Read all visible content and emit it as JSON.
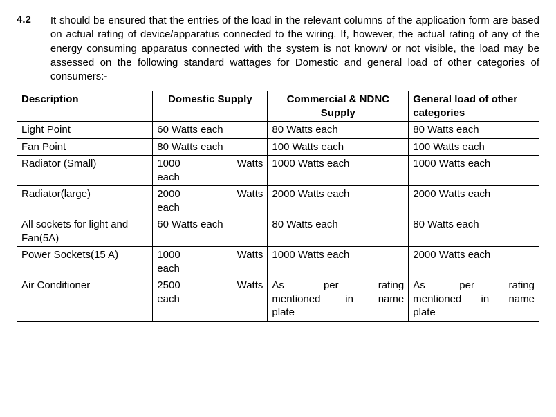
{
  "section": {
    "number": "4.2",
    "text": "It should be ensured that the entries of the load in the relevant columns of the application form are based on actual rating of device/apparatus connected to the wiring. If, however, the actual rating of any of the energy consuming apparatus connected with the system is not known/ or not visible, the load may be assessed on the following standard wattages for Domestic and general load of other categories of consumers:-"
  },
  "table": {
    "headers": {
      "c0": "Description",
      "c1": "Domestic Supply",
      "c2": "Commercial & NDNC Supply",
      "c3": "General load of other categories"
    },
    "rows": [
      {
        "c0": "Light Point",
        "c1": "60 Watts each",
        "c2": "80 Watts each",
        "c3": "80 Watts each"
      },
      {
        "c0": "Fan Point",
        "c1": "80 Watts each",
        "c2": "100 Watts each",
        "c3": "100 Watts each"
      },
      {
        "c0": "Radiator (Small)",
        "c1_a": "1000",
        "c1_b": "Watts",
        "c1_c": "each",
        "c2": "1000 Watts each",
        "c3": "1000 Watts each"
      },
      {
        "c0": "Radiator(large)",
        "c1_a": "2000",
        "c1_b": "Watts",
        "c1_c": "each",
        "c2": "2000 Watts each",
        "c3": "2000 Watts each"
      },
      {
        "c0": "All sockets for light and Fan(5A)",
        "c1": "60 Watts each",
        "c2": "80 Watts each",
        "c3": "80 Watts each"
      },
      {
        "c0": "Power Sockets(15 A)",
        "c1_a": "1000",
        "c1_b": "Watts",
        "c1_c": "each",
        "c2": "1000 Watts each",
        "c3": "2000 Watts each"
      },
      {
        "c0": "Air Conditioner",
        "c1_a": "2500",
        "c1_b": "Watts",
        "c1_c": "each",
        "c2_a": "As",
        "c2_b": "per",
        "c2_c": "rating",
        "c2_d": "mentioned in name",
        "c2_e": "plate",
        "c3_a": "As",
        "c3_b": "per",
        "c3_c": "rating",
        "c3_d": "mentioned in name",
        "c3_e": "plate"
      }
    ]
  }
}
